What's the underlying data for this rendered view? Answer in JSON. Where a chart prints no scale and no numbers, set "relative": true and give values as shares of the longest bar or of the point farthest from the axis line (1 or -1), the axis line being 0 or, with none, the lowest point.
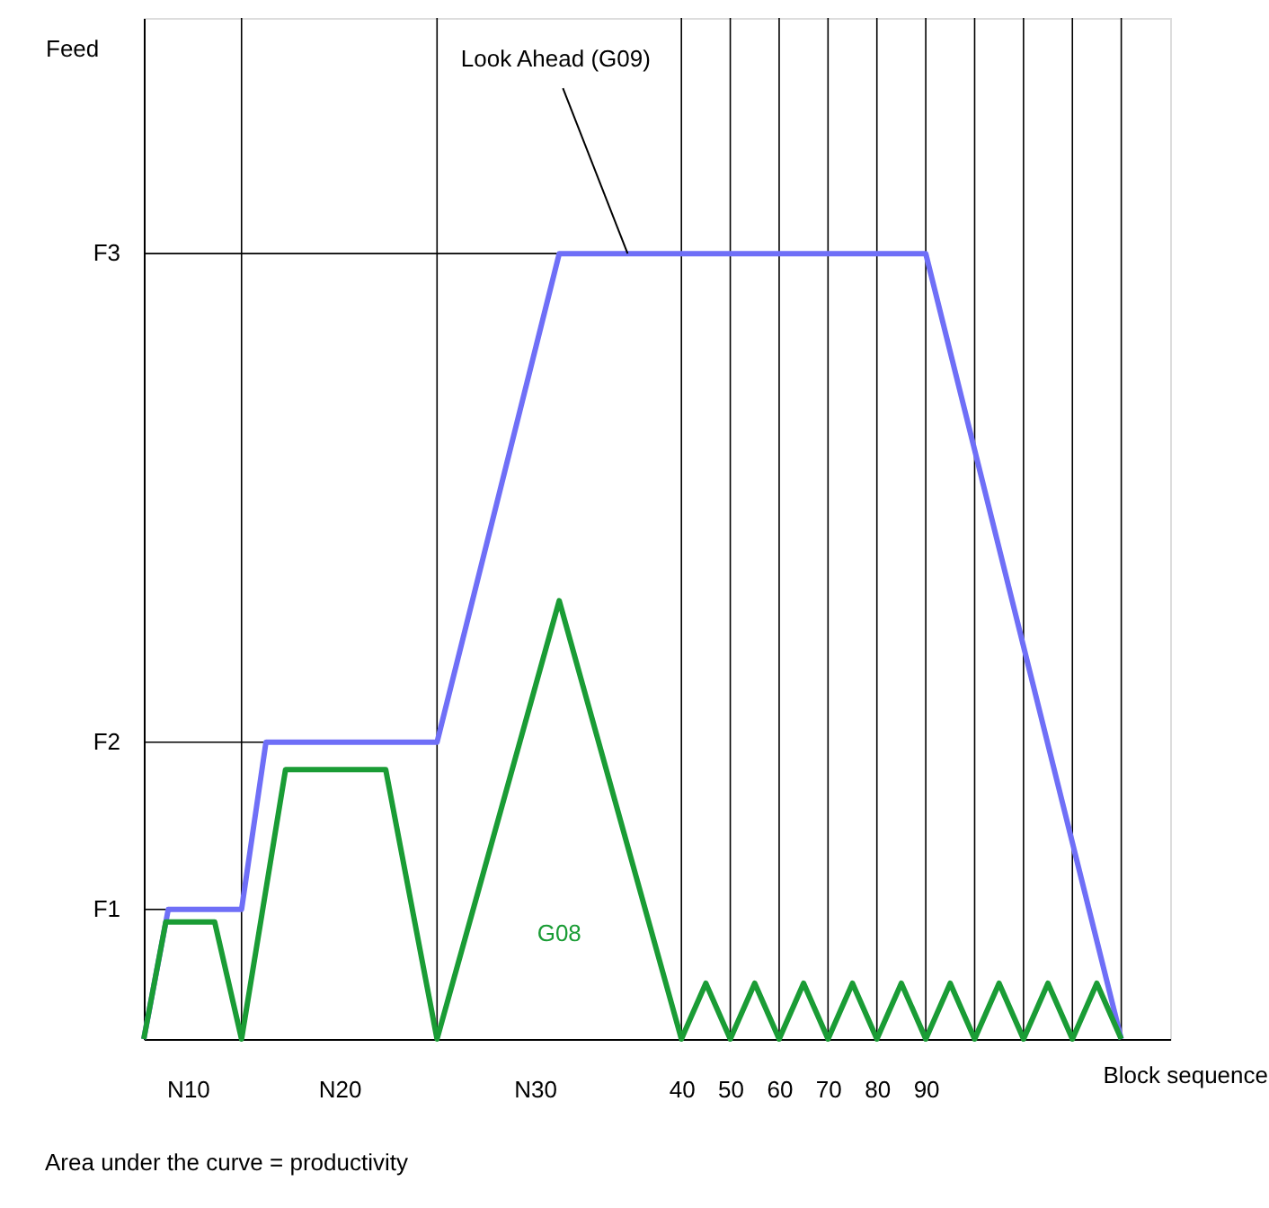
{
  "chart_data": {
    "type": "line",
    "relative": true,
    "xlabel": "Block sequence",
    "ylabel": "Feed",
    "xlim": [
      -70,
      140
    ],
    "ylim": [
      0,
      1.3
    ],
    "xticks": [
      {
        "value": -61,
        "label": "N10"
      },
      {
        "value": -30,
        "label": "N20"
      },
      {
        "value": 10,
        "label": "N30"
      },
      40,
      50,
      60,
      70,
      80,
      90
    ],
    "series": [
      {
        "color": "#6f6ff7",
        "x": [
          -70,
          -65,
          -50,
          -45,
          -10,
          15,
          90,
          130
        ],
        "values": [
          0,
          0.165,
          0.165,
          0.378,
          0.378,
          1,
          1,
          0
        ]
      },
      {
        "name": "G08",
        "color": "#1a9c35",
        "x": [
          -70,
          -65.5,
          -55.5,
          -50,
          -41,
          -20.5,
          -10,
          15,
          40,
          45,
          50,
          55,
          60,
          65,
          70,
          75,
          80,
          85,
          90,
          95,
          100,
          105,
          110,
          115,
          120,
          125,
          130
        ],
        "values": [
          0,
          0.149,
          0.149,
          0,
          0.343,
          0.343,
          0,
          0.558,
          0,
          0.071,
          0,
          0.071,
          0,
          0.071,
          0,
          0.071,
          0,
          0.071,
          0,
          0.071,
          0,
          0.071,
          0,
          0.071,
          0,
          0.071,
          0
        ]
      }
    ],
    "ref_lines": [
      {
        "axis": "x",
        "value": -50
      },
      {
        "axis": "x",
        "value": -10
      },
      {
        "axis": "x",
        "value": 40
      },
      {
        "axis": "x",
        "value": 50
      },
      {
        "axis": "x",
        "value": 60
      },
      {
        "axis": "x",
        "value": 70
      },
      {
        "axis": "x",
        "value": 80
      },
      {
        "axis": "x",
        "value": 90
      },
      {
        "axis": "x",
        "value": 100
      },
      {
        "axis": "x",
        "value": 110
      },
      {
        "axis": "x",
        "value": 120
      },
      {
        "axis": "x",
        "value": 130
      },
      {
        "axis": "y",
        "value": 0.165,
        "label": "F1"
      },
      {
        "axis": "y",
        "value": 0.378,
        "label": "F2"
      },
      {
        "axis": "y",
        "value": 1,
        "label": "F3"
      }
    ],
    "annotations": [
      {
        "text": "Look Ahead (G09)",
        "x": 29,
        "y": 1
      },
      "Area under the curve = productivity"
    ],
    "grid": false,
    "marker": "none",
    "line_style": "solid"
  }
}
